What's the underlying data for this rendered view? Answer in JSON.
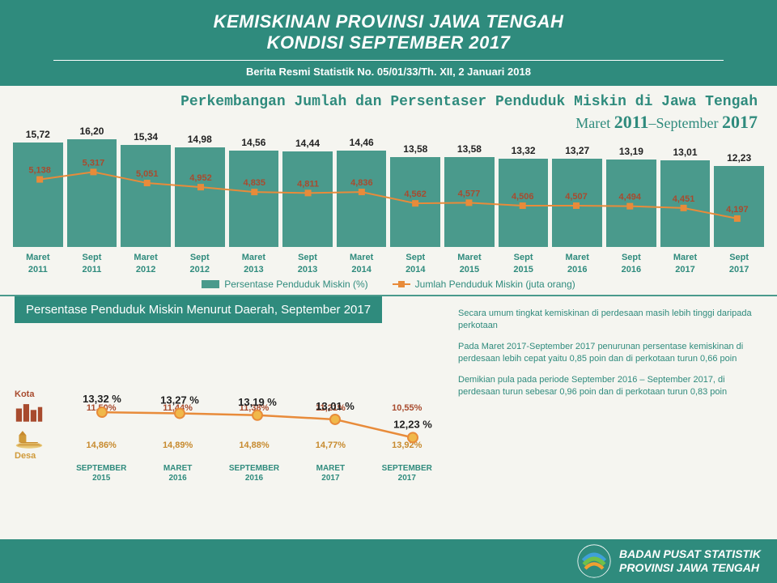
{
  "header": {
    "title_line1": "KEMISKINAN PROVINSI JAWA TENGAH",
    "title_line2": "KONDISI SEPTEMBER 2017",
    "subtitle": "Berita Resmi Statistik No. 05/01/33/Th. XII, 2 Januari 2018"
  },
  "chart_title": {
    "line1": "Perkembangan Jumlah dan Persentaser Penduduk Miskin di Jawa Tengah",
    "line2_a": "Maret ",
    "line2_y1": "2011",
    "line2_b": "–September ",
    "line2_y2": "2017"
  },
  "bar_chart": {
    "type": "bar+line",
    "bar_color": "#4a9a8c",
    "line_color": "#e88b3a",
    "marker_color": "#e88b3a",
    "ylim_bar": [
      0,
      17
    ],
    "ylim_line": [
      4000,
      5500
    ],
    "categories_month": [
      "Maret",
      "Sept",
      "Maret",
      "Sept",
      "Maret",
      "Sept",
      "Maret",
      "Sept",
      "Maret",
      "Sept",
      "Maret",
      "Sept",
      "Maret",
      "Sept"
    ],
    "categories_year": [
      "2011",
      "2011",
      "2012",
      "2012",
      "2013",
      "2013",
      "2014",
      "2014",
      "2015",
      "2015",
      "2016",
      "2016",
      "2017",
      "2017"
    ],
    "bar_values": [
      15.72,
      16.2,
      15.34,
      14.98,
      14.56,
      14.44,
      14.46,
      13.58,
      13.58,
      13.32,
      13.27,
      13.19,
      13.01,
      12.23
    ],
    "bar_labels": [
      "15,72",
      "16,20",
      "15,34",
      "14,98",
      "14,56",
      "14,44",
      "14,46",
      "13,58",
      "13,58",
      "13,32",
      "13,27",
      "13,19",
      "13,01",
      "12,23"
    ],
    "line_values": [
      5138,
      5317,
      5051,
      4952,
      4835,
      4811,
      4836,
      4562,
      4577,
      4506,
      4507,
      4494,
      4451,
      4197
    ],
    "line_labels": [
      "5,138",
      "5,317",
      "5,051",
      "4,952",
      "4,835",
      "4,811",
      "4,836",
      "4,562",
      "4,577",
      "4,506",
      "4,507",
      "4,494",
      "4,451",
      "4,197"
    ],
    "legend_bar": "Persentase Penduduk Miskin (%)",
    "legend_line": "Jumlah Penduduk Miskin (juta orang)"
  },
  "section2_title": "Persentase Penduduk Miskin Menurut Daerah, September 2017",
  "area_chart": {
    "type": "line+table",
    "periods": [
      "SEPTEMBER 2015",
      "MARET 2016",
      "SEPTEMBER 2016",
      "MARET 2017",
      "SEPTEMBER 2017"
    ],
    "total_line_color": "#e88b3a",
    "total_values": [
      13.32,
      13.27,
      13.19,
      13.01,
      12.23
    ],
    "total_labels": [
      "13,32 %",
      "13,27 %",
      "13,19 %",
      "13,01 %",
      "12,23 %"
    ],
    "kota_label": "Kota",
    "kota_color": "#a84b2e",
    "kota_values": [
      "11,50%",
      "11,44%",
      "11,38%",
      "11,21%",
      "10,55%"
    ],
    "desa_label": "Desa",
    "desa_color": "#c78a2e",
    "desa_values": [
      "14,86%",
      "14,89%",
      "14,88%",
      "14,77%",
      "13,92%"
    ]
  },
  "notes": {
    "p1": "Secara umum tingkat kemiskinan di perdesaan masih lebih tinggi daripada perkotaan",
    "p2": "Pada Maret 2017-September 2017 penurunan persentase kemiskinan di perdesaan lebih cepat yaitu 0,85 poin  dan di perkotaan turun 0,66 poin",
    "p3": "Demikian pula pada periode September 2016 – September 2017, di perdesaan turun sebesar 0,96 poin dan di perkotaan turun 0,83 poin"
  },
  "footer": {
    "line1": "BADAN PUSAT STATISTIK",
    "line2": "PROVINSI JAWA TENGAH"
  },
  "colors": {
    "primary": "#2f8b7d",
    "bar": "#4a9a8c",
    "orange": "#e88b3a",
    "brown": "#a84b2e"
  }
}
